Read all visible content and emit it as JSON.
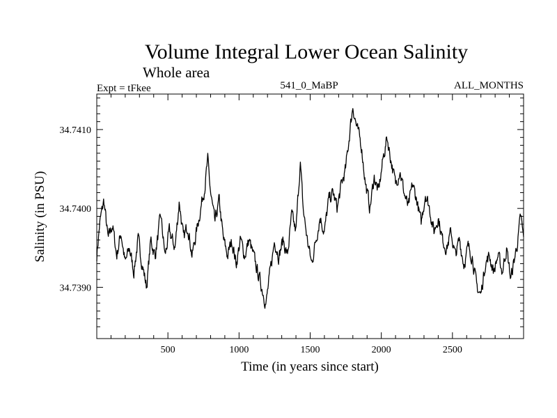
{
  "chart_data": {
    "type": "line",
    "title": "Volume Integral Lower Ocean Salinity",
    "subtitle": "Whole area",
    "header_left": "Expt = tFkee",
    "header_center": "541_0_MaBP",
    "header_right": "ALL_MONTHS",
    "xlabel": "Time (in years since start)",
    "ylabel": "Salinity (in PSU)",
    "xlim": [
      0,
      3000
    ],
    "ylim": [
      34.73835,
      34.74145
    ],
    "x_ticks": [
      500,
      1000,
      1500,
      2000,
      2500
    ],
    "x_tick_labels": [
      "500",
      "1000",
      "1500",
      "2000",
      "2500"
    ],
    "y_ticks": [
      34.739,
      34.74,
      34.741
    ],
    "y_tick_labels": [
      "34.7390",
      "34.7400",
      "34.7410"
    ],
    "grid": false,
    "legend": "none",
    "line_color": "#000000",
    "series": [
      {
        "anchors": [
          [
            0,
            34.7394
          ],
          [
            20,
            34.7398
          ],
          [
            50,
            34.7401
          ],
          [
            80,
            34.7396
          ],
          [
            110,
            34.7398
          ],
          [
            140,
            34.7394
          ],
          [
            170,
            34.7397
          ],
          [
            200,
            34.7393
          ],
          [
            230,
            34.7395
          ],
          [
            260,
            34.7392
          ],
          [
            290,
            34.7396
          ],
          [
            320,
            34.7393
          ],
          [
            350,
            34.739
          ],
          [
            380,
            34.7396
          ],
          [
            410,
            34.7394
          ],
          [
            450,
            34.7399
          ],
          [
            480,
            34.7394
          ],
          [
            510,
            34.7397
          ],
          [
            550,
            34.7395
          ],
          [
            580,
            34.7401
          ],
          [
            610,
            34.7396
          ],
          [
            640,
            34.7398
          ],
          [
            670,
            34.7394
          ],
          [
            700,
            34.7397
          ],
          [
            730,
            34.74
          ],
          [
            760,
            34.7403
          ],
          [
            780,
            34.7406
          ],
          [
            800,
            34.7402
          ],
          [
            830,
            34.7398
          ],
          [
            860,
            34.7401
          ],
          [
            890,
            34.7396
          ],
          [
            920,
            34.7394
          ],
          [
            950,
            34.7396
          ],
          [
            980,
            34.7393
          ],
          [
            1010,
            34.7396
          ],
          [
            1040,
            34.7394
          ],
          [
            1070,
            34.7396
          ],
          [
            1100,
            34.7394
          ],
          [
            1130,
            34.7392
          ],
          [
            1160,
            34.739
          ],
          [
            1190,
            34.7388
          ],
          [
            1220,
            34.7392
          ],
          [
            1250,
            34.7396
          ],
          [
            1280,
            34.7394
          ],
          [
            1310,
            34.7396
          ],
          [
            1340,
            34.7394
          ],
          [
            1370,
            34.7399
          ],
          [
            1400,
            34.7397
          ],
          [
            1430,
            34.7406
          ],
          [
            1450,
            34.74
          ],
          [
            1480,
            34.7396
          ],
          [
            1510,
            34.7393
          ],
          [
            1540,
            34.7396
          ],
          [
            1570,
            34.7399
          ],
          [
            1600,
            34.7397
          ],
          [
            1630,
            34.7401
          ],
          [
            1660,
            34.7402
          ],
          [
            1690,
            34.74
          ],
          [
            1720,
            34.7403
          ],
          [
            1750,
            34.7405
          ],
          [
            1780,
            34.741
          ],
          [
            1800,
            34.7413
          ],
          [
            1830,
            34.741
          ],
          [
            1860,
            34.7408
          ],
          [
            1890,
            34.7403
          ],
          [
            1920,
            34.74
          ],
          [
            1950,
            34.7404
          ],
          [
            1980,
            34.7402
          ],
          [
            2010,
            34.7406
          ],
          [
            2040,
            34.7409
          ],
          [
            2070,
            34.7406
          ],
          [
            2100,
            34.7403
          ],
          [
            2130,
            34.7405
          ],
          [
            2160,
            34.7402
          ],
          [
            2190,
            34.74
          ],
          [
            2220,
            34.7403
          ],
          [
            2250,
            34.7401
          ],
          [
            2280,
            34.7398
          ],
          [
            2310,
            34.7402
          ],
          [
            2340,
            34.74
          ],
          [
            2370,
            34.7397
          ],
          [
            2400,
            34.7399
          ],
          [
            2430,
            34.7396
          ],
          [
            2460,
            34.7395
          ],
          [
            2490,
            34.7397
          ],
          [
            2520,
            34.7394
          ],
          [
            2550,
            34.7396
          ],
          [
            2580,
            34.7393
          ],
          [
            2610,
            34.7395
          ],
          [
            2640,
            34.7394
          ],
          [
            2670,
            34.739
          ],
          [
            2700,
            34.7389
          ],
          [
            2730,
            34.7393
          ],
          [
            2760,
            34.7394
          ],
          [
            2790,
            34.7392
          ],
          [
            2820,
            34.7394
          ],
          [
            2850,
            34.7392
          ],
          [
            2880,
            34.7395
          ],
          [
            2910,
            34.7391
          ],
          [
            2940,
            34.7394
          ],
          [
            2960,
            34.7396
          ],
          [
            2980,
            34.7399
          ],
          [
            3000,
            34.7396
          ]
        ],
        "sample_step_years": 3,
        "noise_amplitude": 0.00014
      }
    ]
  }
}
